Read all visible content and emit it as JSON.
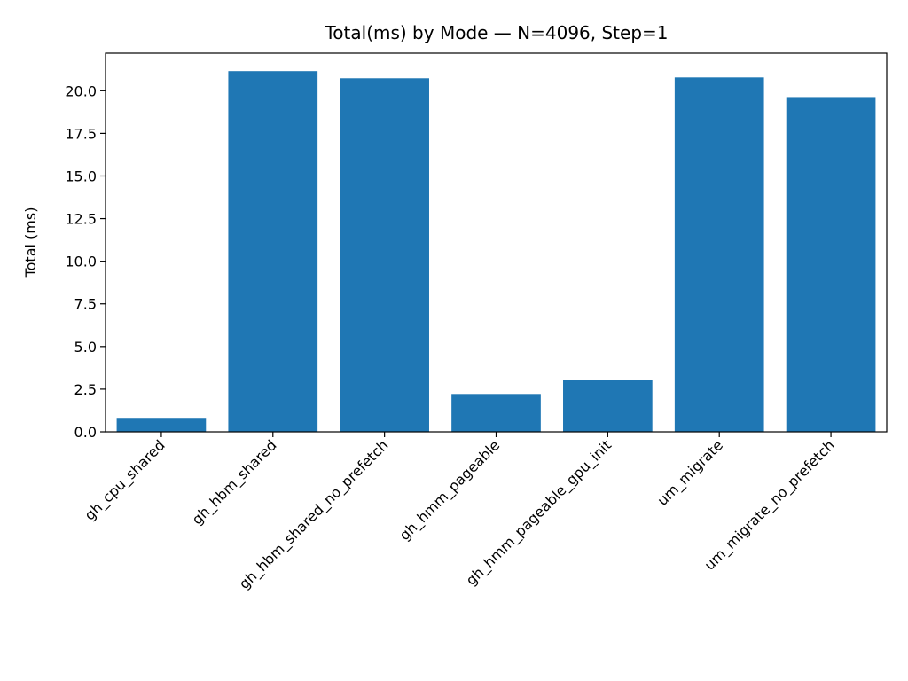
{
  "chart_data": {
    "type": "bar",
    "title": "Total(ms) by Mode — N=4096, Step=1",
    "xlabel": "",
    "ylabel": "Total (ms)",
    "categories": [
      "gh_cpu_shared",
      "gh_hbm_shared",
      "gh_hbm_shared_no_prefetch",
      "gh_hmm_pageable",
      "gh_hmm_pageable_gpu_init",
      "um_migrate",
      "um_migrate_no_prefetch"
    ],
    "values": [
      0.82,
      21.15,
      20.73,
      2.22,
      3.05,
      20.78,
      19.63
    ],
    "ylim": [
      0,
      22.2
    ],
    "yticks": [
      "0.0",
      "2.5",
      "5.0",
      "7.5",
      "10.0",
      "12.5",
      "15.0",
      "17.5",
      "20.0"
    ],
    "grid": false,
    "legend": "none",
    "bar_color": "#1f77b4"
  }
}
